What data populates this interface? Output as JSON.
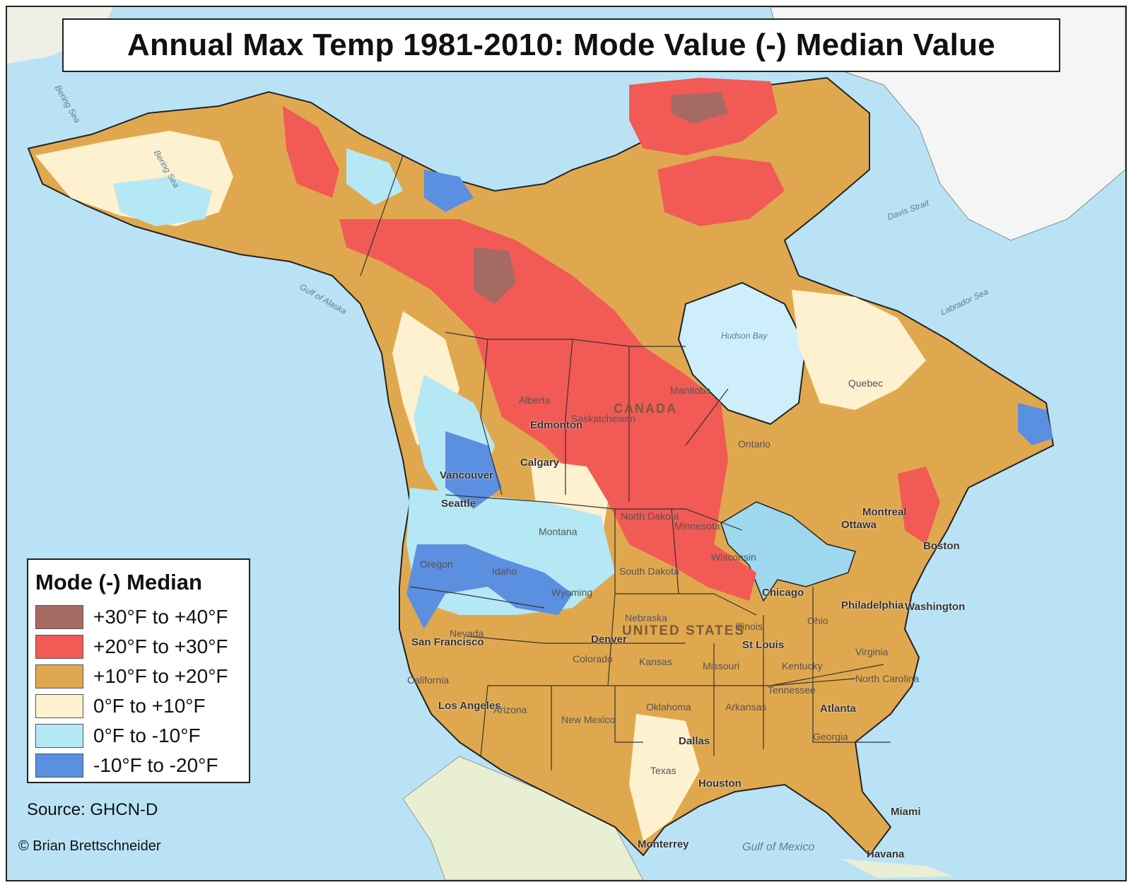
{
  "title": "Annual Max Temp 1981-2010: Mode Value (-) Median Value",
  "legend": {
    "title": "Mode (-) Median",
    "items": [
      {
        "label": "+30°F to +40°F",
        "color": "#a66a64",
        "range_f": [
          30,
          40
        ]
      },
      {
        "label": "+20°F to +30°F",
        "color": "#f25a55",
        "range_f": [
          20,
          30
        ]
      },
      {
        "label": "+10°F to +20°F",
        "color": "#e0a84e",
        "range_f": [
          10,
          20
        ]
      },
      {
        "label": "0°F to +10°F",
        "color": "#fdf1cf",
        "range_f": [
          0,
          10
        ]
      },
      {
        "label": "0°F to -10°F",
        "color": "#b5e8f5",
        "range_f": [
          -10,
          0
        ]
      },
      {
        "label": "-10°F to -20°F",
        "color": "#5b8fe0",
        "range_f": [
          -20,
          -10
        ]
      }
    ]
  },
  "source": "Source: GHCN-D",
  "credit": "© Brian Brettschneider",
  "map_labels": {
    "countries": [
      "CANADA",
      "UNITED STATES"
    ],
    "cities": [
      "Edmonton",
      "Calgary",
      "Vancouver",
      "Seattle",
      "San Francisco",
      "Los Angeles",
      "Denver",
      "Dallas",
      "Houston",
      "Chicago",
      "St Louis",
      "Philadelphia",
      "Boston",
      "Montreal",
      "Ottawa",
      "Atlanta",
      "Miami",
      "Havana",
      "Monterrey",
      "Washington"
    ],
    "regions": [
      "Alberta",
      "Saskatchewan",
      "Manitoba",
      "Ontario",
      "Quebec",
      "North Dakota",
      "South Dakota",
      "Nebraska",
      "Kansas",
      "Oklahoma",
      "Texas",
      "Arizona",
      "New Mexico",
      "Montana",
      "Minnesota",
      "Wisconsin",
      "Missouri",
      "Illinois",
      "Kentucky",
      "Tennessee",
      "Ohio",
      "Virginia",
      "North Carolina",
      "Georgia",
      "Arkansas",
      "Nevada",
      "California",
      "Oregon",
      "Idaho",
      "Wyoming",
      "Colorado"
    ],
    "waters": [
      "Bering Sea",
      "Gulf of Alaska",
      "Hudson Bay",
      "Labrador Sea",
      "Davis Strait",
      "Gulf of Mexico"
    ]
  }
}
